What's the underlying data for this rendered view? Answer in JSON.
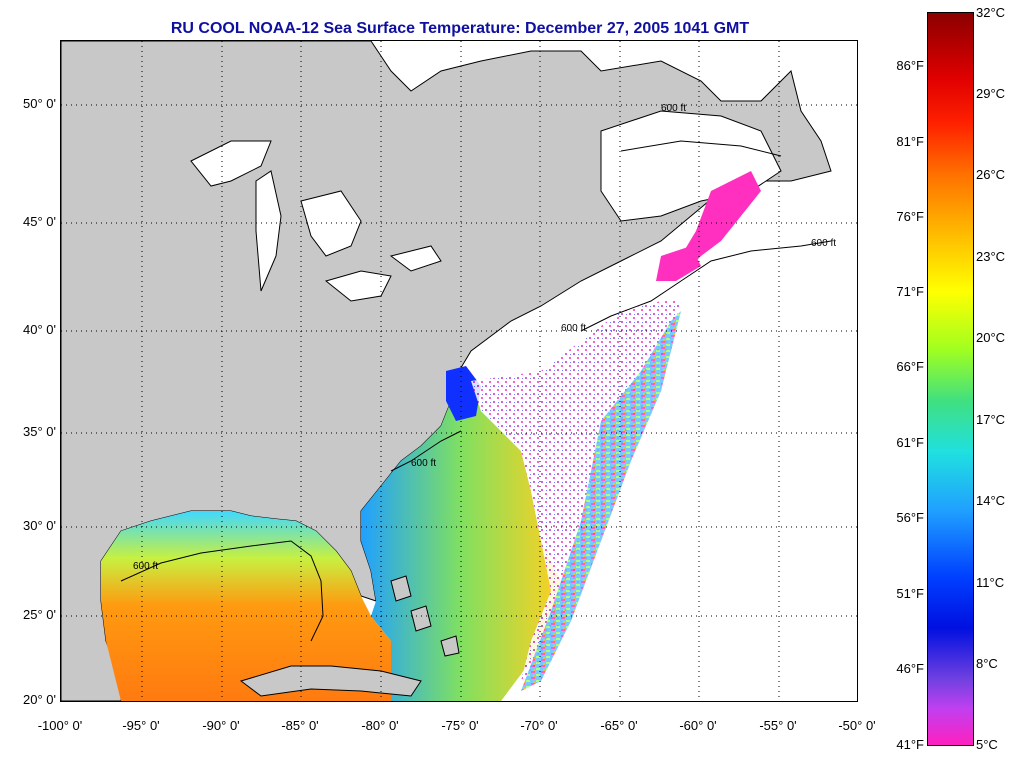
{
  "title": "RU COOL  NOAA-12  Sea Surface Temperature:  December 27, 2005 1041 GMT",
  "latitude_labels": [
    "50° 0'",
    "45° 0'",
    "40° 0'",
    "35° 0'",
    "30° 0'",
    "25° 0'",
    "20° 0'"
  ],
  "longitude_labels": [
    "-100° 0'",
    "-95° 0'",
    "-90° 0'",
    "-85° 0'",
    "-80° 0'",
    "-75° 0'",
    "-70° 0'",
    "-65° 0'",
    "-60° 0'",
    "-55° 0'",
    "-50° 0'"
  ],
  "isobath_label": "600 ft",
  "colorbar": {
    "fahrenheit": [
      "86°F",
      "81°F",
      "76°F",
      "71°F",
      "66°F",
      "61°F",
      "56°F",
      "51°F",
      "46°F",
      "41°F"
    ],
    "celsius": [
      "32°C",
      "29°C",
      "26°C",
      "23°C",
      "20°C",
      "17°C",
      "14°C",
      "11°C",
      "8°C",
      "5°C"
    ]
  },
  "colors": {
    "land": "#c8c8c8",
    "title": "#1010a0",
    "no_data": "#ffffff"
  }
}
